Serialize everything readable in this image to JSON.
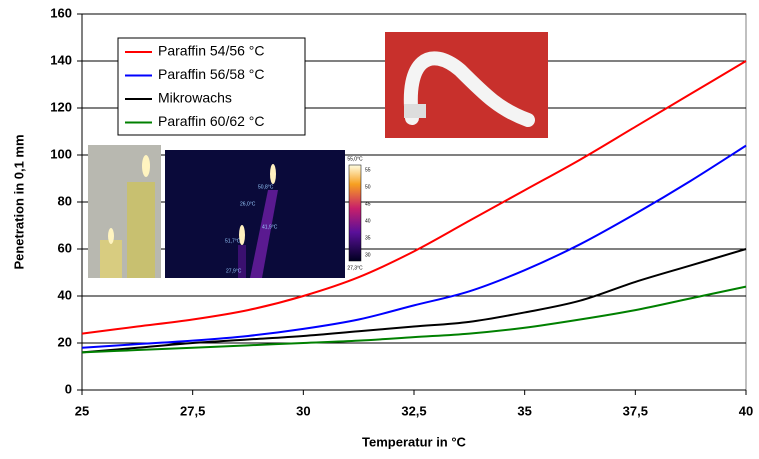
{
  "chart_data": {
    "type": "line",
    "xlabel": "Temperatur in °C",
    "ylabel": "Penetration in 0,1 mm",
    "x": [
      25,
      26.25,
      27.5,
      28.75,
      30,
      31.25,
      32.5,
      33.75,
      35,
      36.25,
      37.5,
      38.75,
      40
    ],
    "series": [
      {
        "name": "Paraffin 54/56 °C",
        "color": "#ff0000",
        "values": [
          24,
          27,
          30,
          34,
          40,
          48,
          59,
          72,
          85,
          98,
          112,
          126,
          140
        ]
      },
      {
        "name": "Paraffin 56/58 °C",
        "color": "#0000ff",
        "values": [
          18,
          19.5,
          21,
          23,
          26,
          30,
          36,
          42,
          51,
          62,
          75,
          89,
          104
        ]
      },
      {
        "name": "Mikrowachs",
        "color": "#000000",
        "values": [
          16,
          18,
          20,
          21.5,
          23,
          25,
          27,
          29,
          33,
          38,
          46,
          53,
          60
        ]
      },
      {
        "name": "Paraffin 60/62 °C",
        "color": "#008000",
        "values": [
          16,
          17,
          18,
          19,
          20,
          21,
          22.5,
          24,
          26.5,
          30,
          34,
          39,
          44
        ]
      }
    ],
    "xlim": [
      25,
      40
    ],
    "xticks": [
      25,
      {
        "value": 27.5,
        "label": "27,5"
      },
      30,
      {
        "value": 32.5,
        "label": "32,5"
      },
      35,
      {
        "value": 37.5,
        "label": "37,5"
      },
      40
    ],
    "ylim": [
      0,
      160
    ],
    "yticks": [
      0,
      20,
      40,
      60,
      80,
      100,
      120,
      140,
      160
    ],
    "grid": true
  },
  "thermal_image": {
    "max_label": "55,0°C",
    "min_label": "27,3°C",
    "scale": [
      "55",
      "50",
      "45",
      "40",
      "35",
      "30"
    ],
    "spots": [
      "50,8°C",
      "26,0°C",
      "41,9°C",
      "51,7°C",
      "27,9°C"
    ]
  }
}
